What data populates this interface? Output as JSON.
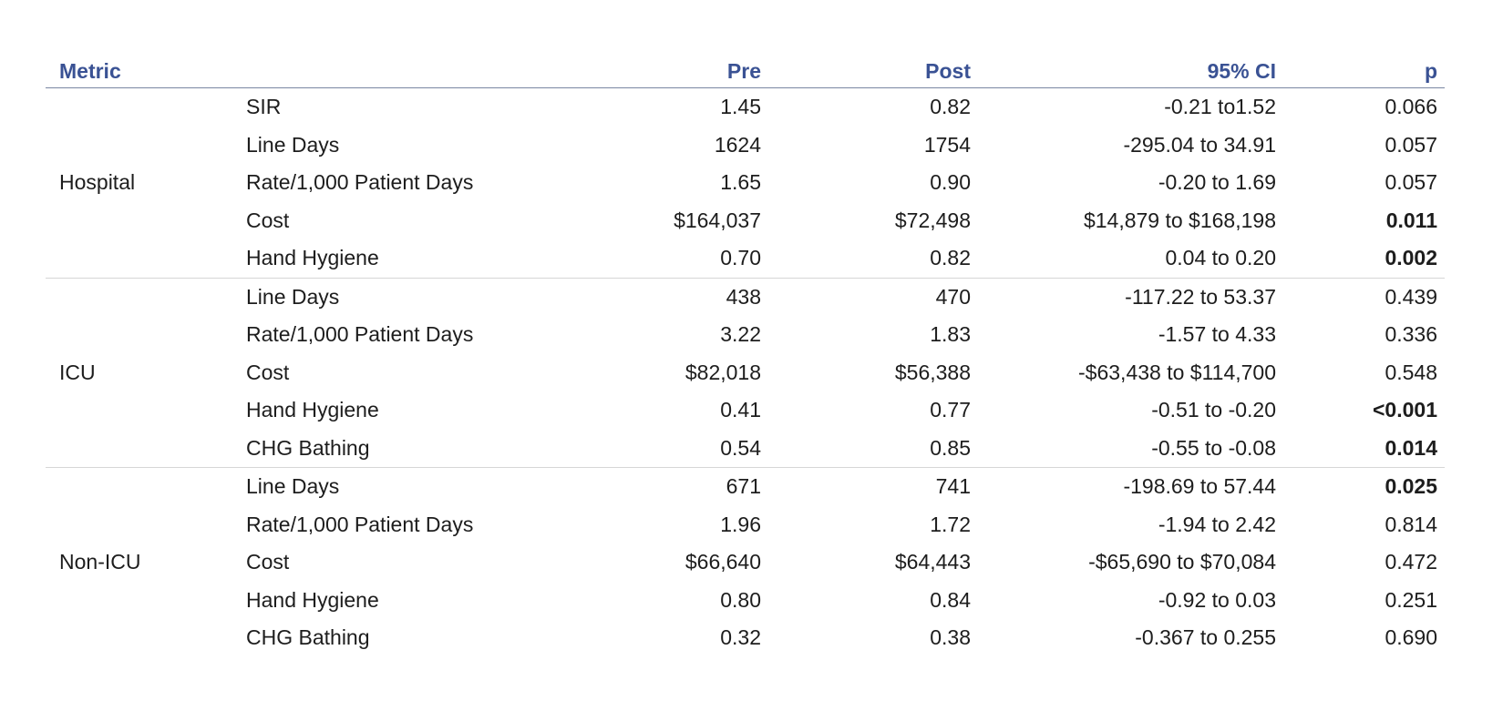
{
  "chart_data": {
    "type": "table",
    "title": "",
    "columns": [
      "Metric",
      "Pre",
      "Post",
      "95% CI",
      "p"
    ],
    "groups": [
      {
        "name": "Hospital",
        "rows": [
          {
            "metric": "SIR",
            "pre": "1.45",
            "post": "0.82",
            "ci": "-0.21 to1.52",
            "p": "0.066",
            "p_bold": false
          },
          {
            "metric": "Line Days",
            "pre": "1624",
            "post": "1754",
            "ci": "-295.04 to 34.91",
            "p": "0.057",
            "p_bold": false
          },
          {
            "metric": "Rate/1,000 Patient Days",
            "pre": "1.65",
            "post": "0.90",
            "ci": "-0.20 to 1.69",
            "p": "0.057",
            "p_bold": false
          },
          {
            "metric": "Cost",
            "pre": "$164,037",
            "post": "$72,498",
            "ci": "$14,879 to $168,198",
            "p": "0.011",
            "p_bold": true
          },
          {
            "metric": "Hand Hygiene",
            "pre": "0.70",
            "post": "0.82",
            "ci": "0.04 to 0.20",
            "p": "0.002",
            "p_bold": true
          }
        ]
      },
      {
        "name": "ICU",
        "rows": [
          {
            "metric": "Line Days",
            "pre": "438",
            "post": "470",
            "ci": "-117.22 to 53.37",
            "p": "0.439",
            "p_bold": false
          },
          {
            "metric": "Rate/1,000 Patient Days",
            "pre": "3.22",
            "post": "1.83",
            "ci": "-1.57 to 4.33",
            "p": "0.336",
            "p_bold": false
          },
          {
            "metric": "Cost",
            "pre": "$82,018",
            "post": "$56,388",
            "ci": "-$63,438 to $114,700",
            "p": "0.548",
            "p_bold": false
          },
          {
            "metric": "Hand Hygiene",
            "pre": "0.41",
            "post": "0.77",
            "ci": "-0.51 to -0.20",
            "p": "<0.001",
            "p_bold": true
          },
          {
            "metric": "CHG Bathing",
            "pre": "0.54",
            "post": "0.85",
            "ci": "-0.55 to -0.08",
            "p": "0.014",
            "p_bold": true
          }
        ]
      },
      {
        "name": "Non-ICU",
        "rows": [
          {
            "metric": "Line Days",
            "pre": "671",
            "post": "741",
            "ci": "-198.69 to 57.44",
            "p": "0.025",
            "p_bold": true
          },
          {
            "metric": "Rate/1,000 Patient Days",
            "pre": "1.96",
            "post": "1.72",
            "ci": "-1.94 to 2.42",
            "p": "0.814",
            "p_bold": false
          },
          {
            "metric": "Cost",
            "pre": "$66,640",
            "post": "$64,443",
            "ci": "-$65,690 to $70,084",
            "p": "0.472",
            "p_bold": false
          },
          {
            "metric": "Hand Hygiene",
            "pre": "0.80",
            "post": "0.84",
            "ci": "-0.92 to 0.03",
            "p": "0.251",
            "p_bold": false
          },
          {
            "metric": "CHG Bathing",
            "pre": "0.32",
            "post": "0.38",
            "ci": "-0.367 to 0.255",
            "p": "0.690",
            "p_bold": false
          }
        ]
      }
    ],
    "layout": {
      "header_text_color": "#3a5294",
      "header_rule_color": "#7a87a3",
      "group_rule_color": "#d6d6d6",
      "body_text_color": "#1d1d1d",
      "background": "#ffffff",
      "bold_p_means": "statistically significant p-value"
    }
  }
}
